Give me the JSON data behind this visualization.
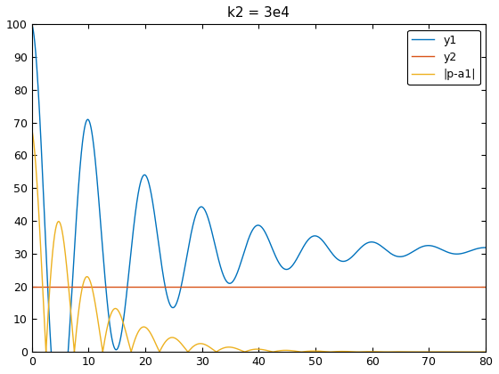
{
  "title": "k2 = 3e4",
  "xlim": [
    0,
    80
  ],
  "ylim": [
    0,
    100
  ],
  "xticks": [
    0,
    10,
    20,
    30,
    40,
    50,
    60,
    70,
    80
  ],
  "yticks": [
    0,
    10,
    20,
    30,
    40,
    50,
    60,
    70,
    80,
    90,
    100
  ],
  "y1_color": "#0072BD",
  "y2_color": "#D95319",
  "y3_color": "#EDB120",
  "y2_value": 20,
  "legend_labels": [
    "y1",
    "y2",
    "|p-a1|"
  ],
  "y1_params": {
    "A0": 100,
    "equilibrium": 31,
    "decay": 0.055,
    "omega": 0.628,
    "phi": 0.0
  },
  "y3_params": {
    "A0": 68,
    "decay": 0.11,
    "omega": 0.628,
    "phi": 0.0
  },
  "title_fontsize": 11,
  "legend_fontsize": 9,
  "tick_fontsize": 9,
  "linewidth": 1.0
}
